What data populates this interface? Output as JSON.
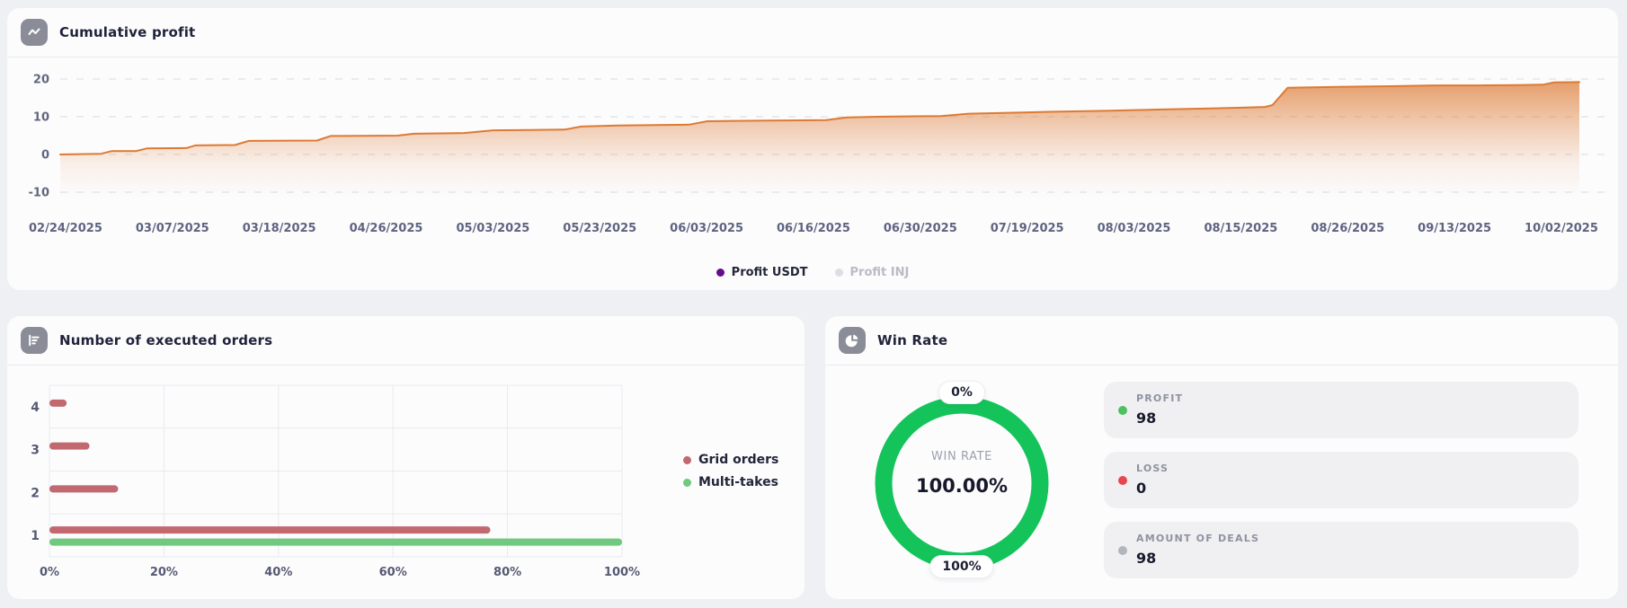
{
  "page": {
    "background": "#eff0f4"
  },
  "cumulative_panel": {
    "title": "Cumulative profit",
    "legend": [
      {
        "label": "Profit USDT",
        "color": "#650b8d",
        "muted": false
      },
      {
        "label": "Profit INJ",
        "color": "#dcdee4",
        "muted": true
      }
    ]
  },
  "orders_panel": {
    "title": "Number of executed orders",
    "legend": [
      {
        "label": "Grid orders",
        "color": "#c2686f"
      },
      {
        "label": "Multi-takes",
        "color": "#70c97f"
      }
    ]
  },
  "winrate_panel": {
    "title": "Win Rate",
    "gauge": {
      "top_label": "0%",
      "bottom_label": "100%",
      "center_label": "WIN RATE",
      "center_value": "100.00%"
    },
    "stats": [
      {
        "label": "PROFIT",
        "value": "98",
        "dot_color": "#4cc15e"
      },
      {
        "label": "LOSS",
        "value": "0",
        "dot_color": "#e8474f"
      },
      {
        "label": "AMOUNT OF DEALS",
        "value": "98",
        "dot_color": "#b3b5bd"
      }
    ]
  },
  "chart_data": [
    {
      "type": "area",
      "title": "Cumulative profit",
      "line_color": "#dd7a33",
      "grid": "dashed-horizontal",
      "y_ticks": [
        20,
        10,
        0,
        -10
      ],
      "ylim": [
        -15,
        25
      ],
      "x_tick_labels": [
        "02/24/2025",
        "03/07/2025",
        "03/18/2025",
        "04/26/2025",
        "05/03/2025",
        "05/23/2025",
        "06/03/2025",
        "06/16/2025",
        "06/30/2025",
        "07/19/2025",
        "08/03/2025",
        "08/15/2025",
        "08/26/2025",
        "09/13/2025",
        "10/02/2025"
      ],
      "series": [
        {
          "name": "Profit USDT",
          "points_frac_value": [
            [
              0,
              0
            ],
            [
              0.027,
              0.2
            ],
            [
              0.034,
              0.9
            ],
            [
              0.05,
              0.9
            ],
            [
              0.057,
              1.6
            ],
            [
              0.083,
              1.7
            ],
            [
              0.089,
              2.4
            ],
            [
              0.115,
              2.5
            ],
            [
              0.124,
              3.6
            ],
            [
              0.169,
              3.7
            ],
            [
              0.178,
              4.9
            ],
            [
              0.222,
              5.0
            ],
            [
              0.233,
              5.5
            ],
            [
              0.266,
              5.7
            ],
            [
              0.285,
              6.4
            ],
            [
              0.309,
              6.5
            ],
            [
              0.332,
              6.6
            ],
            [
              0.343,
              7.4
            ],
            [
              0.367,
              7.7
            ],
            [
              0.414,
              7.9
            ],
            [
              0.426,
              8.8
            ],
            [
              0.444,
              8.9
            ],
            [
              0.467,
              9.0
            ],
            [
              0.504,
              9.1
            ],
            [
              0.518,
              9.8
            ],
            [
              0.538,
              10.0
            ],
            [
              0.58,
              10.2
            ],
            [
              0.598,
              10.8
            ],
            [
              0.621,
              11.0
            ],
            [
              0.651,
              11.3
            ],
            [
              0.692,
              11.6
            ],
            [
              0.722,
              11.9
            ],
            [
              0.757,
              12.2
            ],
            [
              0.778,
              12.4
            ],
            [
              0.793,
              12.6
            ],
            [
              0.798,
              13.1
            ],
            [
              0.808,
              17.7
            ],
            [
              0.84,
              17.9
            ],
            [
              0.876,
              18.1
            ],
            [
              0.905,
              18.3
            ],
            [
              0.935,
              18.3
            ],
            [
              0.959,
              18.4
            ],
            [
              0.976,
              18.5
            ],
            [
              0.983,
              19.1
            ],
            [
              1,
              19.2
            ]
          ]
        },
        {
          "name": "Profit INJ",
          "hidden": true
        }
      ]
    },
    {
      "type": "bar",
      "title": "Number of executed orders",
      "orientation": "horizontal",
      "unit": "percent",
      "categories": [
        "4",
        "3",
        "2",
        "1"
      ],
      "series": [
        {
          "name": "Grid orders",
          "color": "#c2686f",
          "values": [
            3,
            7,
            12,
            77
          ]
        },
        {
          "name": "Multi-takes",
          "color": "#70c97f",
          "values": [
            0,
            0,
            0,
            100
          ]
        }
      ],
      "x_ticks": [
        "0%",
        "20%",
        "40%",
        "60%",
        "80%",
        "100%"
      ],
      "xlim": [
        0,
        100
      ],
      "grid": "on",
      "legend_position": "right"
    },
    {
      "type": "donut",
      "title": "Win Rate",
      "value_pct": 100.0,
      "center_label": "WIN RATE",
      "center_value": "100.00%",
      "min_label": "0%",
      "max_label": "100%",
      "ring_color": "#14c45b"
    }
  ]
}
